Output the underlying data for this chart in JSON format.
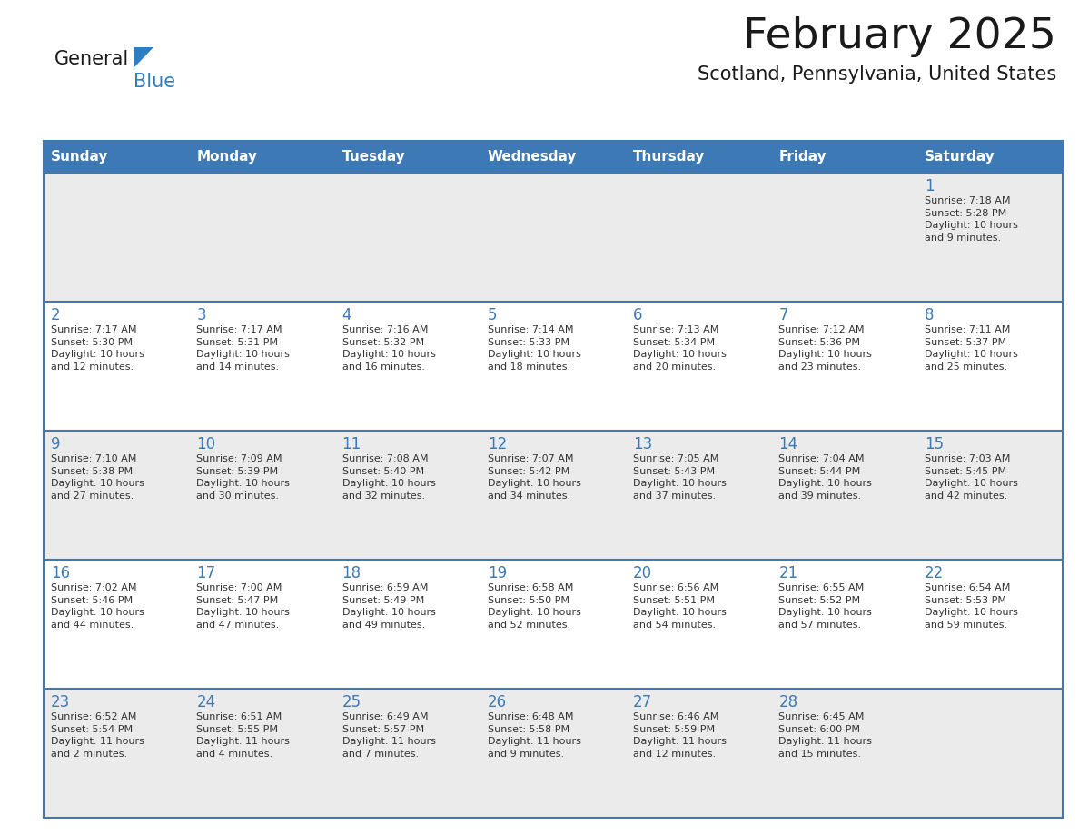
{
  "title": "February 2025",
  "subtitle": "Scotland, Pennsylvania, United States",
  "days_of_week": [
    "Sunday",
    "Monday",
    "Tuesday",
    "Wednesday",
    "Thursday",
    "Friday",
    "Saturday"
  ],
  "header_bg": "#3d7ab5",
  "header_text": "#FFFFFF",
  "row_bg_odd": "#EBEBEB",
  "row_bg_even": "#FFFFFF",
  "border_color": "#3d7ab5",
  "day_number_color": "#3d7ab5",
  "info_text_color": "#333333",
  "title_color": "#1a1a1a",
  "subtitle_color": "#1a1a1a",
  "logo_general_color": "#1a1a1a",
  "logo_blue_color": "#2e7fc1",
  "logo_triangle_color": "#2e7fc1",
  "calendar": [
    [
      {
        "day": null,
        "info": ""
      },
      {
        "day": null,
        "info": ""
      },
      {
        "day": null,
        "info": ""
      },
      {
        "day": null,
        "info": ""
      },
      {
        "day": null,
        "info": ""
      },
      {
        "day": null,
        "info": ""
      },
      {
        "day": 1,
        "info": "Sunrise: 7:18 AM\nSunset: 5:28 PM\nDaylight: 10 hours\nand 9 minutes."
      }
    ],
    [
      {
        "day": 2,
        "info": "Sunrise: 7:17 AM\nSunset: 5:30 PM\nDaylight: 10 hours\nand 12 minutes."
      },
      {
        "day": 3,
        "info": "Sunrise: 7:17 AM\nSunset: 5:31 PM\nDaylight: 10 hours\nand 14 minutes."
      },
      {
        "day": 4,
        "info": "Sunrise: 7:16 AM\nSunset: 5:32 PM\nDaylight: 10 hours\nand 16 minutes."
      },
      {
        "day": 5,
        "info": "Sunrise: 7:14 AM\nSunset: 5:33 PM\nDaylight: 10 hours\nand 18 minutes."
      },
      {
        "day": 6,
        "info": "Sunrise: 7:13 AM\nSunset: 5:34 PM\nDaylight: 10 hours\nand 20 minutes."
      },
      {
        "day": 7,
        "info": "Sunrise: 7:12 AM\nSunset: 5:36 PM\nDaylight: 10 hours\nand 23 minutes."
      },
      {
        "day": 8,
        "info": "Sunrise: 7:11 AM\nSunset: 5:37 PM\nDaylight: 10 hours\nand 25 minutes."
      }
    ],
    [
      {
        "day": 9,
        "info": "Sunrise: 7:10 AM\nSunset: 5:38 PM\nDaylight: 10 hours\nand 27 minutes."
      },
      {
        "day": 10,
        "info": "Sunrise: 7:09 AM\nSunset: 5:39 PM\nDaylight: 10 hours\nand 30 minutes."
      },
      {
        "day": 11,
        "info": "Sunrise: 7:08 AM\nSunset: 5:40 PM\nDaylight: 10 hours\nand 32 minutes."
      },
      {
        "day": 12,
        "info": "Sunrise: 7:07 AM\nSunset: 5:42 PM\nDaylight: 10 hours\nand 34 minutes."
      },
      {
        "day": 13,
        "info": "Sunrise: 7:05 AM\nSunset: 5:43 PM\nDaylight: 10 hours\nand 37 minutes."
      },
      {
        "day": 14,
        "info": "Sunrise: 7:04 AM\nSunset: 5:44 PM\nDaylight: 10 hours\nand 39 minutes."
      },
      {
        "day": 15,
        "info": "Sunrise: 7:03 AM\nSunset: 5:45 PM\nDaylight: 10 hours\nand 42 minutes."
      }
    ],
    [
      {
        "day": 16,
        "info": "Sunrise: 7:02 AM\nSunset: 5:46 PM\nDaylight: 10 hours\nand 44 minutes."
      },
      {
        "day": 17,
        "info": "Sunrise: 7:00 AM\nSunset: 5:47 PM\nDaylight: 10 hours\nand 47 minutes."
      },
      {
        "day": 18,
        "info": "Sunrise: 6:59 AM\nSunset: 5:49 PM\nDaylight: 10 hours\nand 49 minutes."
      },
      {
        "day": 19,
        "info": "Sunrise: 6:58 AM\nSunset: 5:50 PM\nDaylight: 10 hours\nand 52 minutes."
      },
      {
        "day": 20,
        "info": "Sunrise: 6:56 AM\nSunset: 5:51 PM\nDaylight: 10 hours\nand 54 minutes."
      },
      {
        "day": 21,
        "info": "Sunrise: 6:55 AM\nSunset: 5:52 PM\nDaylight: 10 hours\nand 57 minutes."
      },
      {
        "day": 22,
        "info": "Sunrise: 6:54 AM\nSunset: 5:53 PM\nDaylight: 10 hours\nand 59 minutes."
      }
    ],
    [
      {
        "day": 23,
        "info": "Sunrise: 6:52 AM\nSunset: 5:54 PM\nDaylight: 11 hours\nand 2 minutes."
      },
      {
        "day": 24,
        "info": "Sunrise: 6:51 AM\nSunset: 5:55 PM\nDaylight: 11 hours\nand 4 minutes."
      },
      {
        "day": 25,
        "info": "Sunrise: 6:49 AM\nSunset: 5:57 PM\nDaylight: 11 hours\nand 7 minutes."
      },
      {
        "day": 26,
        "info": "Sunrise: 6:48 AM\nSunset: 5:58 PM\nDaylight: 11 hours\nand 9 minutes."
      },
      {
        "day": 27,
        "info": "Sunrise: 6:46 AM\nSunset: 5:59 PM\nDaylight: 11 hours\nand 12 minutes."
      },
      {
        "day": 28,
        "info": "Sunrise: 6:45 AM\nSunset: 6:00 PM\nDaylight: 11 hours\nand 15 minutes."
      },
      {
        "day": null,
        "info": ""
      }
    ]
  ]
}
